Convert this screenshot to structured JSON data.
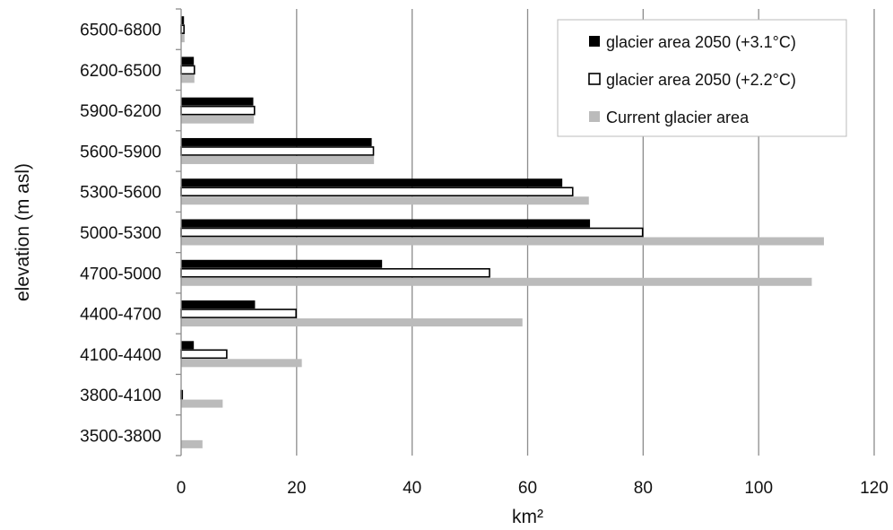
{
  "chart_data": {
    "type": "bar",
    "orientation": "horizontal",
    "categories": [
      "6500-6800",
      "6200-6500",
      "5900-6200",
      "5600-5900",
      "5300-5600",
      "5000-5300",
      "4700-5000",
      "4400-4700",
      "4100-4400",
      "3800-4100",
      "3500-3800"
    ],
    "series": [
      {
        "name": "glacier area 2050 (+3.1°C)",
        "color": "#000000",
        "values": [
          0.5,
          2.2,
          12.5,
          33,
          66,
          70.8,
          34.8,
          12.8,
          2.2,
          0,
          0
        ]
      },
      {
        "name": "glacier area 2050 (+2.2°C)",
        "color": "#ffffff",
        "values": [
          0.5,
          2.3,
          12.7,
          33.3,
          67.8,
          79.9,
          53.4,
          19.9,
          7.9,
          0.2,
          0
        ]
      },
      {
        "name": "Current glacier area",
        "color": "#bbbbbb",
        "values": [
          0.6,
          2.3,
          12.6,
          33.4,
          70.6,
          111.3,
          109.2,
          59.1,
          20.9,
          7.2,
          3.7
        ]
      }
    ],
    "x_ticks": [
      "0",
      "20",
      "40",
      "60",
      "80",
      "100",
      "120"
    ],
    "xlim": [
      0,
      120
    ],
    "xlabel": "km²",
    "ylabel": "elevation (m asl)",
    "title": "",
    "grid": "vertical",
    "legend_position": "top-right"
  }
}
